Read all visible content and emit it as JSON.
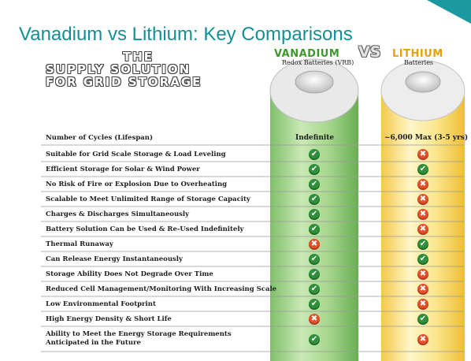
{
  "title": "Vanadium vs Lithium: Key Comparisons",
  "subtitle_lines": [
    "THE",
    "SUPPLY SOLUTION",
    "FOR GRID STORAGE"
  ],
  "vanadium": {
    "name": "VANADIUM",
    "sub": "Redox Batteries (VRB)",
    "color": "#3d9a2a"
  },
  "vs": "VS",
  "lithium": {
    "name": "LITHIUM",
    "sub": "Batteries",
    "color": "#e8a200"
  },
  "rows": [
    {
      "label": "Number of Cycles (Lifespan)",
      "vanadium_text": "Indefinite",
      "lithium_text": "~6,000 Max (3-5 yrs)"
    },
    {
      "label": "Suitable for Grid Scale Storage & Load Leveling",
      "vanadium": "check",
      "lithium": "cross"
    },
    {
      "label": "Efficient Storage for Solar & Wind Power",
      "vanadium": "check",
      "lithium": "check"
    },
    {
      "label": "No Risk of Fire or Explosion Due to Overheating",
      "vanadium": "check",
      "lithium": "cross"
    },
    {
      "label": "Scalable to Meet Unlimited Range of Storage Capacity",
      "vanadium": "check",
      "lithium": "cross"
    },
    {
      "label": "Charges & Discharges Simultaneously",
      "vanadium": "check",
      "lithium": "cross"
    },
    {
      "label": "Battery Solution Can be Used & Re-Used Indefinitely",
      "vanadium": "check",
      "lithium": "cross"
    },
    {
      "label": "Thermal Runaway",
      "vanadium": "cross",
      "lithium": "check"
    },
    {
      "label": "Can Release Energy Instantaneously",
      "vanadium": "check",
      "lithium": "check"
    },
    {
      "label": "Storage Ability Does Not Degrade Over Time",
      "vanadium": "check",
      "lithium": "cross"
    },
    {
      "label": "Reduced Cell Management/Monitoring With Increasing Scale",
      "vanadium": "check",
      "lithium": "cross"
    },
    {
      "label": "Low Environmental Footprint",
      "vanadium": "check",
      "lithium": "cross"
    },
    {
      "label": "High Energy Density & Short Life",
      "vanadium": "cross",
      "lithium": "check"
    },
    {
      "label": "Ability to Meet the Energy Storage Requirements",
      "label2": "Anticipated in the Future",
      "vanadium": "check",
      "lithium": "cross"
    }
  ]
}
